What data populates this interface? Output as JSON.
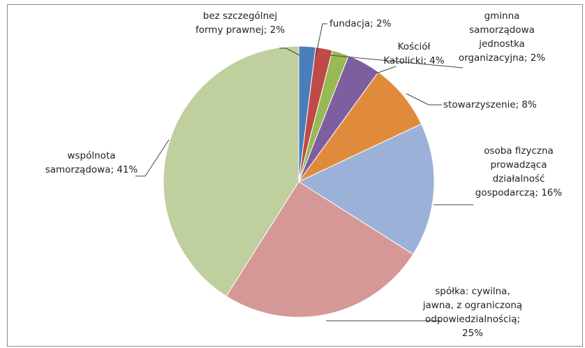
{
  "chart_data": {
    "type": "pie",
    "title": "",
    "start_angle_deg": 0,
    "direction": "clockwise",
    "slices": [
      {
        "label": [
          "bez szczególnej",
          "formy prawnej; 2%"
        ],
        "category": "bez szczególnej formy prawnej",
        "value": 2,
        "color": "#4a7ebb"
      },
      {
        "label": [
          "fundacja; 2%"
        ],
        "category": "fundacja",
        "value": 2,
        "color": "#be4b48"
      },
      {
        "label": [
          "gminna",
          "samorządowa",
          "jednostka",
          "organizacyjna; 2%"
        ],
        "category": "gminna samorządowa jednostka organizacyjna",
        "value": 2,
        "color": "#98b954"
      },
      {
        "label": [
          "Kościół",
          "Katolicki; 4%"
        ],
        "category": "Kościół Katolicki",
        "value": 4,
        "color": "#7d5fa0"
      },
      {
        "label": [
          "stowarzyszenie; 8%"
        ],
        "category": "stowarzyszenie",
        "value": 8,
        "color": "#e08b3c"
      },
      {
        "label": [
          "osoba fizyczna",
          "prowadząca",
          "działalność",
          "gospodarczą; 16%"
        ],
        "category": "osoba fizyczna prowadząca działalność gospodarczą",
        "value": 16,
        "color": "#9bb1d7"
      },
      {
        "label": [
          "spółka: cywilna,",
          "jawna, z ograniczoną",
          "odpowiedzialnością;",
          "25%"
        ],
        "category": "spółka: cywilna, jawna, z ograniczoną odpowiedzialnością",
        "value": 25,
        "color": "#d69896"
      },
      {
        "label": [
          "wspólnota",
          "samorządowa; 41%"
        ],
        "category": "wspólnota samorządowa",
        "value": 41,
        "color": "#bfcf9d"
      }
    ]
  }
}
